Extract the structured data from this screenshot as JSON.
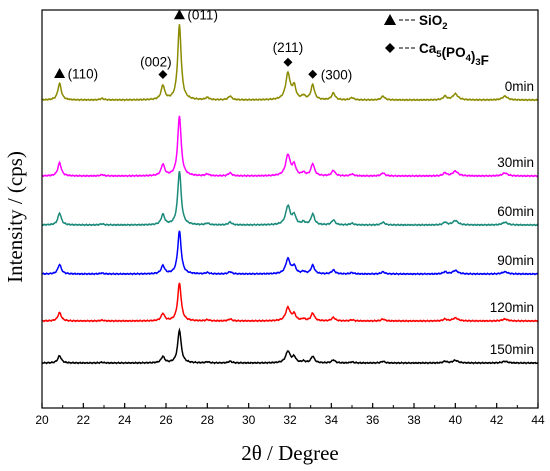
{
  "chart_data": {
    "type": "line",
    "xlabel": "2θ / Degree",
    "ylabel": "Intensity / (cps)",
    "xlim": [
      20,
      44
    ],
    "xticks": [
      20,
      22,
      24,
      26,
      28,
      30,
      32,
      34,
      36,
      38,
      40,
      42,
      44
    ],
    "grid": false,
    "legend_position": "top-right",
    "legend": [
      {
        "marker": "triangle",
        "label": "SiO",
        "subscript": "2"
      },
      {
        "marker": "diamond",
        "label": "Ca",
        "subscript": "5",
        "label2": "(PO",
        "subscript2": "4",
        "label3": ")",
        "subscript3": "3",
        "label4": "F"
      }
    ],
    "peak_annotations": [
      {
        "marker": "triangle",
        "x": 20.85,
        "label": "(110)"
      },
      {
        "marker": "diamond",
        "x": 25.85,
        "label": "(002)"
      },
      {
        "marker": "triangle",
        "x": 26.65,
        "label": "(011)"
      },
      {
        "marker": "diamond",
        "x": 31.9,
        "label": "(211)"
      },
      {
        "marker": "diamond",
        "x": 33.1,
        "label": "(300)"
      }
    ],
    "peaks": [
      {
        "x": 20.85,
        "w": 0.1,
        "rel": 0.22
      },
      {
        "x": 22.9,
        "w": 0.1,
        "rel": 0.02
      },
      {
        "x": 25.85,
        "w": 0.1,
        "rel": 0.19
      },
      {
        "x": 26.65,
        "w": 0.1,
        "rel": 1.0
      },
      {
        "x": 28.0,
        "w": 0.1,
        "rel": 0.03
      },
      {
        "x": 29.1,
        "w": 0.1,
        "rel": 0.05
      },
      {
        "x": 31.9,
        "w": 0.13,
        "rel": 0.35
      },
      {
        "x": 32.2,
        "w": 0.1,
        "rel": 0.17
      },
      {
        "x": 32.65,
        "w": 0.1,
        "rel": 0.05
      },
      {
        "x": 33.1,
        "w": 0.1,
        "rel": 0.2
      },
      {
        "x": 34.1,
        "w": 0.1,
        "rel": 0.09
      },
      {
        "x": 35.0,
        "w": 0.1,
        "rel": 0.03
      },
      {
        "x": 36.5,
        "w": 0.1,
        "rel": 0.05
      },
      {
        "x": 39.5,
        "w": 0.1,
        "rel": 0.05
      },
      {
        "x": 40.0,
        "w": 0.15,
        "rel": 0.08
      },
      {
        "x": 42.4,
        "w": 0.15,
        "rel": 0.05
      }
    ],
    "series": [
      {
        "name": "0min",
        "color": "#8b8b00",
        "peak_height": 75
      },
      {
        "name": "30min",
        "color": "#ff00ff",
        "peak_height": 60
      },
      {
        "name": "60min",
        "color": "#1a8a7a",
        "peak_height": 54
      },
      {
        "name": "90min",
        "color": "#0000ff",
        "peak_height": 43
      },
      {
        "name": "120min",
        "color": "#ff0000",
        "peak_height": 38
      },
      {
        "name": "150min",
        "color": "#000000",
        "peak_height": 33
      }
    ]
  }
}
